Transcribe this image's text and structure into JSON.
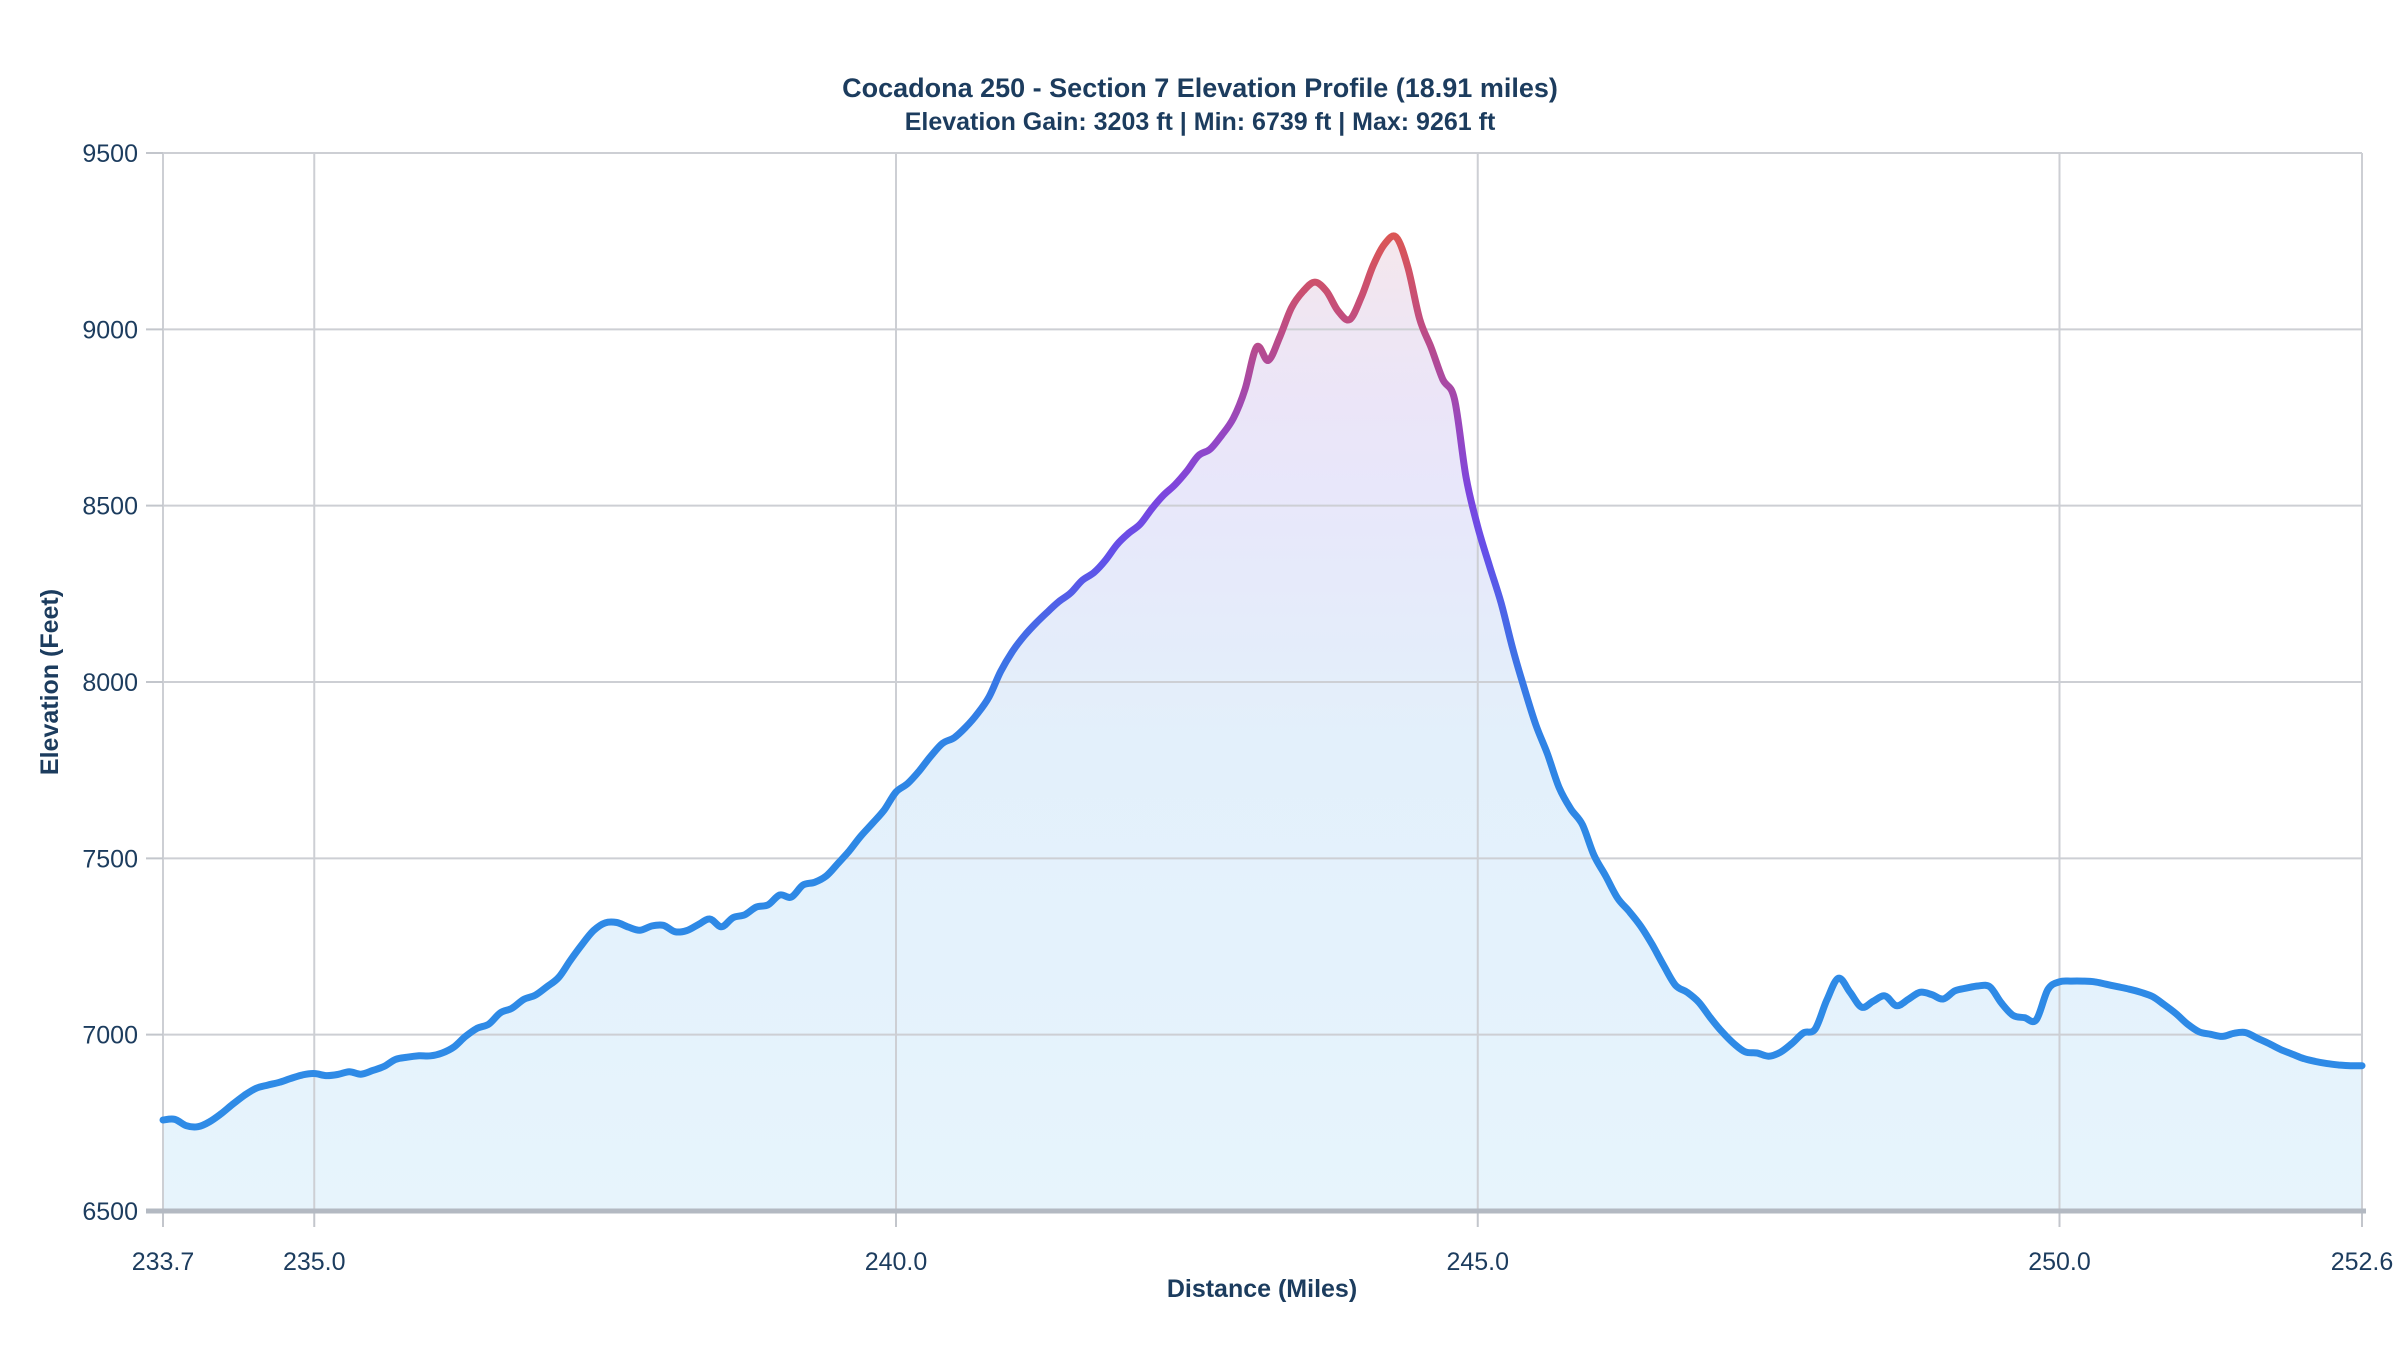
{
  "header": {
    "title": "Cocadona 250 - Section 7 Elevation Profile (18.91 miles)",
    "subtitle": "Elevation Gain: 3203 ft | Min: 6739 ft | Max: 9261 ft"
  },
  "stats": {
    "section_miles": 18.91,
    "elevation_gain_ft": 3203,
    "min_ft": 6739,
    "max_ft": 9261
  },
  "colors": {
    "text_navy": "#1c3c5e",
    "gridline": "#cdcfd4",
    "axis_line": "#b3b9c2",
    "tick_mark": "#c3c6cc",
    "line_low_blue": "#2e87e4",
    "line_mid_violet": "#7d45de",
    "line_high_red": "#e35b48",
    "fill_low": "#e3f0fb",
    "fill_high": "#f8e9e7",
    "background": "#ffffff"
  },
  "chart_data": {
    "type": "area",
    "title": "Cocadona 250 - Section 7 Elevation Profile (18.91 miles)",
    "subtitle": "Elevation Gain: 3203 ft | Min: 6739 ft | Max: 9261 ft",
    "xlabel": "Distance (Miles)",
    "ylabel": "Elevation (Feet)",
    "xlim": [
      233.7,
      252.6
    ],
    "ylim": [
      6500,
      9500
    ],
    "grid": true,
    "x_ticks": [
      233.7,
      235.0,
      240.0,
      245.0,
      250.0,
      252.6
    ],
    "x_tick_labels": [
      "233.7",
      "235.0",
      "240.0",
      "245.0",
      "250.0",
      "252.6"
    ],
    "y_ticks": [
      6500,
      7000,
      7500,
      8000,
      8500,
      9000,
      9500
    ],
    "y_tick_labels": [
      "6500",
      "7000",
      "7500",
      "8000",
      "8500",
      "9000",
      "9500"
    ],
    "x_start": 233.7,
    "x_step": 0.1,
    "x_end": 252.6,
    "elevations_ft": [
      6758,
      6760,
      6742,
      6739,
      6753,
      6776,
      6803,
      6828,
      6848,
      6857,
      6865,
      6876,
      6886,
      6890,
      6884,
      6887,
      6895,
      6888,
      6898,
      6910,
      6930,
      6936,
      6940,
      6940,
      6948,
      6965,
      6995,
      7018,
      7030,
      7062,
      7075,
      7100,
      7112,
      7136,
      7162,
      7210,
      7255,
      7295,
      7317,
      7318,
      7305,
      7296,
      7308,
      7310,
      7292,
      7295,
      7312,
      7328,
      7306,
      7332,
      7340,
      7362,
      7368,
      7396,
      7390,
      7424,
      7432,
      7450,
      7485,
      7522,
      7564,
      7600,
      7638,
      7688,
      7712,
      7748,
      7790,
      7826,
      7842,
      7872,
      7910,
      7958,
      8030,
      8086,
      8130,
      8166,
      8198,
      8228,
      8252,
      8288,
      8310,
      8345,
      8390,
      8422,
      8448,
      8492,
      8530,
      8560,
      8598,
      8642,
      8660,
      8700,
      8748,
      8830,
      8950,
      8912,
      8980,
      9062,
      9108,
      9134,
      9108,
      9052,
      9028,
      9092,
      9180,
      9242,
      9261,
      9175,
      9030,
      8948,
      8858,
      8802,
      8580,
      8440,
      8330,
      8225,
      8095,
      7982,
      7878,
      7795,
      7700,
      7640,
      7595,
      7508,
      7450,
      7388,
      7350,
      7308,
      7255,
      7195,
      7140,
      7120,
      7092,
      7048,
      7008,
      6975,
      6951,
      6948,
      6939,
      6950,
      6975,
      7005,
      7016,
      7098,
      7160,
      7120,
      7078,
      7095,
      7110,
      7082,
      7100,
      7120,
      7114,
      7101,
      7124,
      7132,
      7138,
      7136,
      7090,
      7055,
      7048,
      7042,
      7128,
      7150,
      7152,
      7152,
      7150,
      7143,
      7136,
      7129,
      7120,
      7108,
      7085,
      7060,
      7030,
      7008,
      7001,
      6995,
      7004,
      7006,
      6990,
      6975,
      6958,
      6945,
      6932,
      6924,
      6918,
      6914,
      6912,
      6912
    ],
    "line_gradient_stops": [
      {
        "offset": 0.0,
        "color": "#ec6a3c"
      },
      {
        "offset": 0.05,
        "color": "#e35b48"
      },
      {
        "offset": 0.1,
        "color": "#d45360"
      },
      {
        "offset": 0.15,
        "color": "#c44e7b"
      },
      {
        "offset": 0.2,
        "color": "#b04a98"
      },
      {
        "offset": 0.26,
        "color": "#9747c0"
      },
      {
        "offset": 0.32,
        "color": "#7d45de"
      },
      {
        "offset": 0.38,
        "color": "#6350e9"
      },
      {
        "offset": 0.44,
        "color": "#4a66e7"
      },
      {
        "offset": 0.5,
        "color": "#3878e6"
      },
      {
        "offset": 0.56,
        "color": "#2f84e5"
      },
      {
        "offset": 0.65,
        "color": "#2e88e5"
      },
      {
        "offset": 1.0,
        "color": "#2f8ce7"
      }
    ],
    "fill_gradient_stops": [
      {
        "offset": 0.0,
        "color": "#f8e9e7"
      },
      {
        "offset": 0.08,
        "color": "#f5e7ec"
      },
      {
        "offset": 0.16,
        "color": "#efe6f3"
      },
      {
        "offset": 0.24,
        "color": "#ebe5f8"
      },
      {
        "offset": 0.32,
        "color": "#e8e7fa"
      },
      {
        "offset": 0.4,
        "color": "#e6eafa"
      },
      {
        "offset": 0.48,
        "color": "#e4edfa"
      },
      {
        "offset": 0.56,
        "color": "#e3f0fb"
      },
      {
        "offset": 0.75,
        "color": "#e4f2fc"
      },
      {
        "offset": 1.0,
        "color": "#e7f4fc"
      }
    ],
    "legend": null
  }
}
